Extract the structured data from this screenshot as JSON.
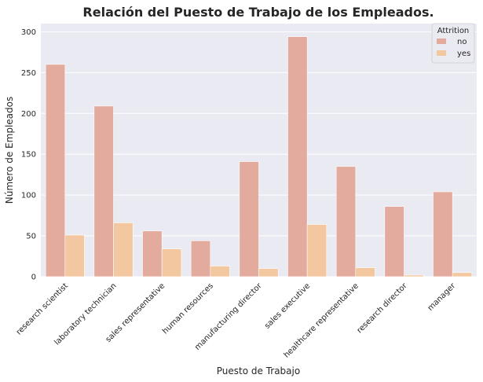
{
  "chart_data": {
    "type": "bar",
    "title": "Relación del Puesto de Trabajo de los Empleados.",
    "xlabel": "Puesto de Trabajo",
    "ylabel": "Número de Empleados",
    "ylim": [
      0,
      310
    ],
    "yticks": [
      0,
      50,
      100,
      150,
      200,
      250,
      300
    ],
    "grid": true,
    "categories": [
      "research scientist",
      "laboratory technician",
      "sales representative",
      "human resources",
      "manufacturing director",
      "sales executive",
      "healthcare representative",
      "research director",
      "manager"
    ],
    "series": [
      {
        "name": "no",
        "color": "#e3ab9e",
        "values": [
          260,
          209,
          56,
          44,
          141,
          294,
          135,
          86,
          104
        ]
      },
      {
        "name": "yes",
        "color": "#f3c79f",
        "values": [
          51,
          66,
          34,
          13,
          10,
          64,
          11,
          2,
          5
        ]
      }
    ],
    "legend": {
      "title": "Attrition",
      "position": "top-right"
    },
    "background": "#eaeaf2"
  }
}
